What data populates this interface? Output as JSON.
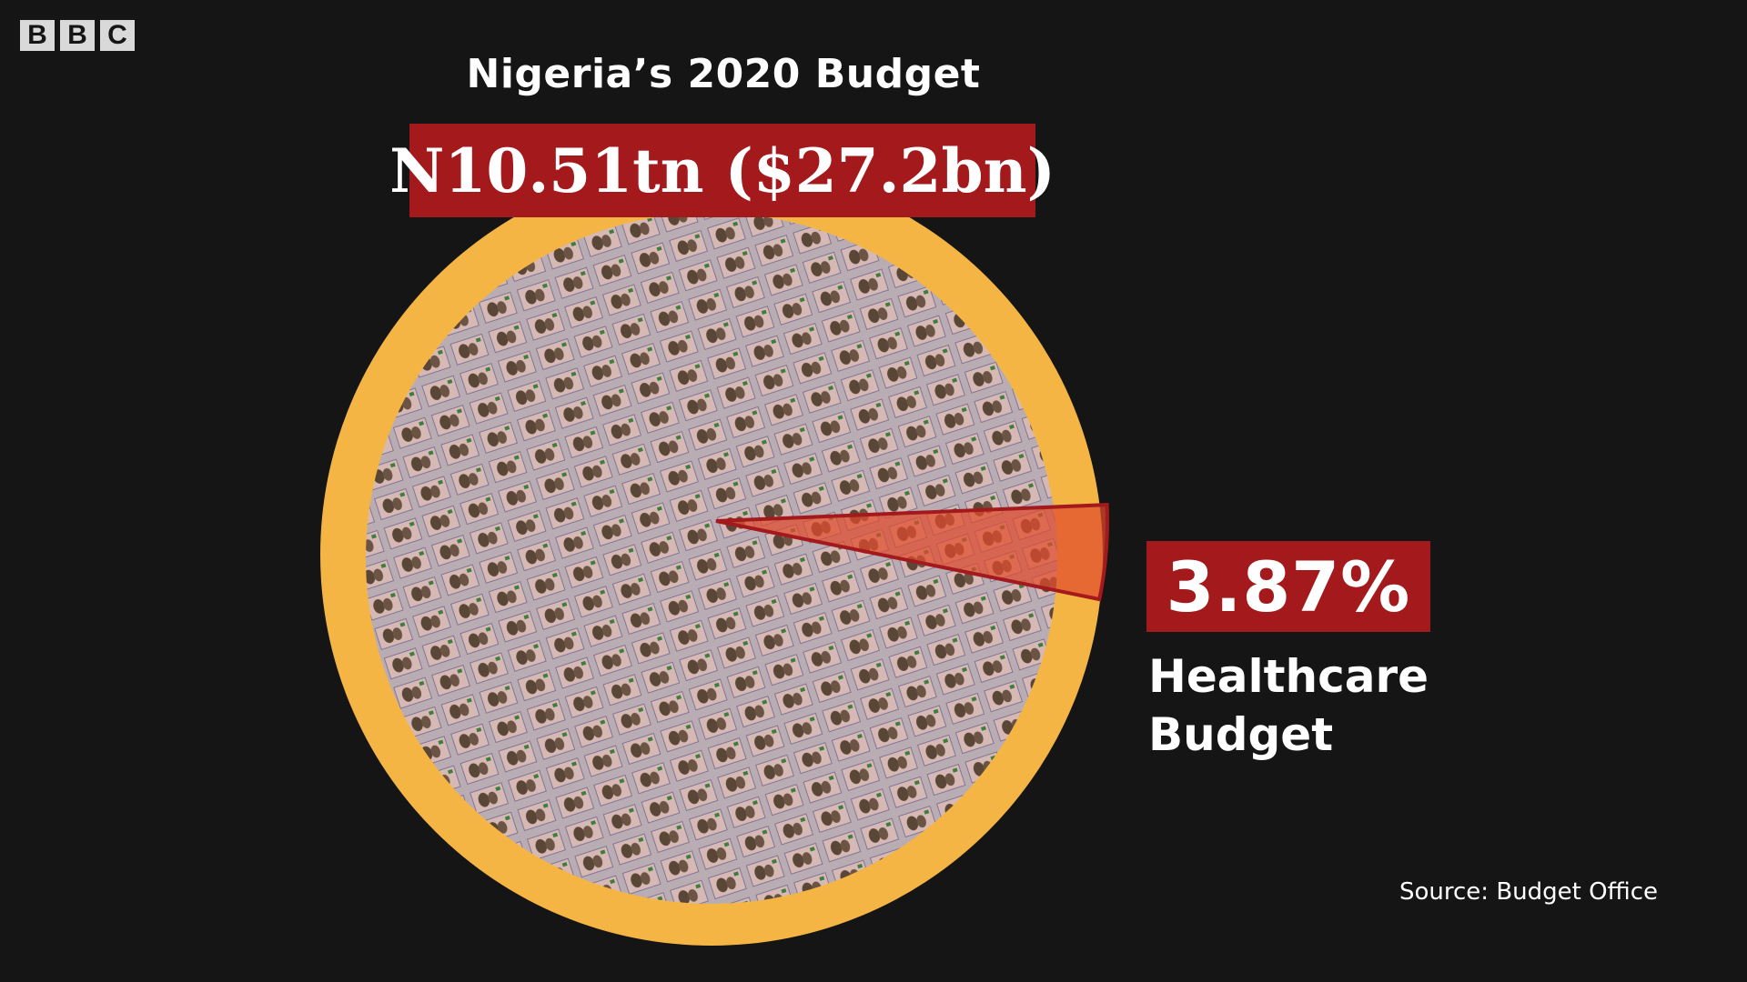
{
  "logo": {
    "letters": [
      "B",
      "B",
      "C"
    ]
  },
  "colors": {
    "background": "#151515",
    "pie_base": "#f5b544",
    "notes_fill": "#a89ca6",
    "highlight": "#a3191c",
    "slice_fill": "#e14b2c"
  },
  "chart_data": {
    "type": "pie",
    "title": "Nigeria’s 2020 Budget",
    "total_label": "N10.51tn ($27.2bn)",
    "slices": [
      {
        "name": "Healthcare Budget",
        "value": 3.87,
        "highlighted": true
      },
      {
        "name": "",
        "value": 96.13,
        "highlighted": false
      }
    ],
    "highlight": {
      "value_text": "3.87%",
      "label": "Healthcare Budget"
    },
    "source": "Source: Budget Office",
    "fill_icon": "naira-banknote-icon"
  }
}
